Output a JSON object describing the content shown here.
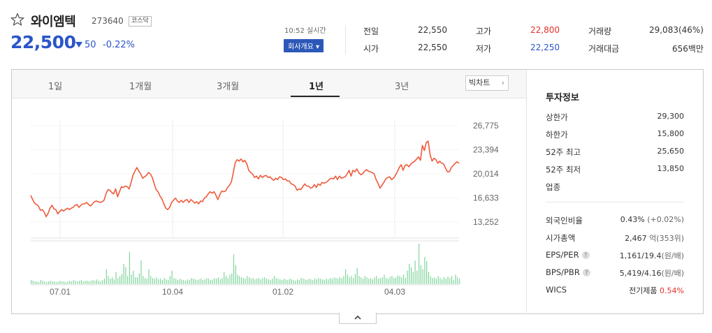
{
  "stock": {
    "name": "와이엠텍",
    "code": "273640",
    "market": "코스닥",
    "price": "22,500",
    "change": "50",
    "change_pct": "-0.22%",
    "time": "10:52 실시간",
    "overview_label": "회사개요 ▾"
  },
  "quote": {
    "prev_close_label": "전일",
    "prev_close": "22,550",
    "high_label": "고가",
    "high": "22,800",
    "volume_label": "거래량",
    "volume": "29,083(46%)",
    "open_label": "시가",
    "open": "22,550",
    "low_label": "저가",
    "low": "22,250",
    "value_label": "거래대금",
    "value": "656백만"
  },
  "tabs": [
    "1일",
    "1개월",
    "3개월",
    "1년",
    "3년"
  ],
  "active_tab": "1년",
  "big_chart_label": "빅차트",
  "invest": {
    "title": "투자정보",
    "upper_limit_label": "상한가",
    "upper_limit": "29,300",
    "lower_limit_label": "하한가",
    "lower_limit": "15,800",
    "w52_high_label": "52주 최고",
    "w52_high": "25,650",
    "w52_low_label": "52주 최저",
    "w52_low": "13,850",
    "sector_label": "업종",
    "foreign_label": "외국인비율",
    "foreign": "0.43%",
    "foreign_sub": "(+0.02%)",
    "mcap_label": "시가총액",
    "mcap": "2,467",
    "mcap_sub": "억(353위)",
    "eps_label": "EPS/PER",
    "eps": "1,161/19.4",
    "eps_sub": "(원/배)",
    "bps_label": "BPS/PBR",
    "bps": "5,419/4.16",
    "bps_sub": "(원/배)",
    "wics_label": "WICS",
    "wics": "전기제품",
    "wics_pct": "0.54%"
  },
  "colors": {
    "up": "#e0312b",
    "down": "#2b55c9",
    "line": "#ef5a3a",
    "volume": "#7fd49b"
  },
  "chart_data": {
    "type": "line",
    "x_ticks": [
      "07.01",
      "10.04",
      "01.02",
      "04.03"
    ],
    "y_ticks": [
      "26,775",
      "23,394",
      "20,014",
      "16,633",
      "13,252"
    ],
    "ylim": [
      13252,
      26775
    ],
    "price": [
      17000,
      16400,
      15900,
      15700,
      15500,
      14900,
      15000,
      14600,
      14000,
      14500,
      15200,
      15600,
      15100,
      15000,
      14400,
      14700,
      15000,
      14800,
      15000,
      15200,
      15000,
      15200,
      15300,
      15600,
      15700,
      15300,
      15600,
      15800,
      15800,
      16000,
      15700,
      15500,
      15800,
      16100,
      16200,
      16100,
      16000,
      16100,
      16300,
      17200,
      17800,
      17700,
      17400,
      17200,
      17900,
      16800,
      17500,
      18200,
      18100,
      18300,
      18200,
      17900,
      18800,
      19800,
      20400,
      20900,
      20400,
      20000,
      19400,
      19600,
      19800,
      20200,
      20000,
      19500,
      18600,
      17800,
      17500,
      16900,
      16500,
      15800,
      15200,
      15000,
      15300,
      16000,
      16300,
      16600,
      16200,
      16000,
      16300,
      16000,
      16300,
      16400,
      16000,
      16400,
      16200,
      15900,
      16100,
      15800,
      16200,
      16100,
      16600,
      16800,
      17200,
      17500,
      17300,
      17500,
      17000,
      16400,
      17100,
      17600,
      17500,
      17600,
      18100,
      18400,
      18900,
      20200,
      21600,
      22000,
      21800,
      22100,
      21700,
      21900,
      21400,
      20500,
      20200,
      20000,
      19500,
      19700,
      19300,
      19800,
      19500,
      19700,
      19800,
      19500,
      19600,
      19300,
      19100,
      19400,
      19200,
      19600,
      19500,
      19200,
      19300,
      19000,
      19000,
      18600,
      18500,
      18300,
      17700,
      17900,
      17800,
      18200,
      18600,
      18300,
      18300,
      18000,
      18100,
      18500,
      18100,
      18600,
      18400,
      18800,
      18700,
      18800,
      19000,
      19300,
      19400,
      19300,
      19700,
      19200,
      19700,
      19400,
      19500,
      19600,
      20000,
      20500,
      19700,
      20500,
      20300,
      20700,
      20200,
      19900,
      20000,
      20400,
      20600,
      20400,
      20300,
      20200,
      20000,
      19200,
      18700,
      18000,
      18400,
      18800,
      19300,
      19500,
      19600,
      19200,
      19400,
      19800,
      20300,
      20900,
      21300,
      20500,
      21200,
      21300,
      21000,
      21400,
      21600,
      21800,
      22100,
      22400,
      21900,
      24000,
      23300,
      24400,
      24600,
      22700,
      21800,
      22200,
      22000,
      21500,
      21800,
      21500,
      21400,
      20800,
      20300,
      20300,
      20900,
      21200,
      21500,
      21700,
      21500
    ],
    "volume": [
      6,
      5,
      4,
      4,
      3,
      6,
      5,
      4,
      3,
      4,
      5,
      4,
      4,
      3,
      4,
      5,
      4,
      4,
      3,
      4,
      5,
      4,
      6,
      5,
      4,
      5,
      6,
      4,
      5,
      5,
      4,
      5,
      6,
      5,
      7,
      5,
      4,
      6,
      8,
      22,
      12,
      8,
      10,
      7,
      18,
      9,
      12,
      15,
      30,
      25,
      12,
      48,
      14,
      20,
      10,
      10,
      16,
      35,
      12,
      9,
      8,
      22,
      12,
      9,
      8,
      10,
      7,
      8,
      6,
      9,
      7,
      6,
      12,
      20,
      9,
      8,
      6,
      8,
      7,
      6,
      5,
      7,
      6,
      9,
      8,
      7,
      6,
      7,
      8,
      6,
      7,
      9,
      8,
      6,
      7,
      9,
      8,
      10,
      7,
      9,
      18,
      12,
      9,
      14,
      16,
      44,
      28,
      14,
      12,
      10,
      9,
      8,
      12,
      10,
      8,
      9,
      7,
      8,
      9,
      7,
      9,
      10,
      8,
      7,
      6,
      8,
      12,
      9,
      8,
      7,
      6,
      8,
      7,
      6,
      8,
      7,
      6,
      5,
      7,
      6,
      9,
      8,
      7,
      6,
      8,
      7,
      6,
      8,
      7,
      9,
      8,
      7,
      6,
      8,
      7,
      9,
      8,
      10,
      9,
      8,
      10,
      9,
      12,
      22,
      14,
      10,
      12,
      9,
      15,
      24,
      12,
      10,
      8,
      12,
      10,
      8,
      9,
      7,
      10,
      12,
      8,
      9,
      10,
      14,
      9,
      8,
      11,
      12,
      9,
      10,
      13,
      12,
      10,
      14,
      9,
      20,
      30,
      25,
      18,
      35,
      20,
      60,
      28,
      22,
      40,
      34,
      18,
      12,
      9,
      10,
      8,
      12,
      9,
      7,
      10,
      8,
      11,
      9,
      12,
      6,
      14,
      10,
      8
    ]
  }
}
